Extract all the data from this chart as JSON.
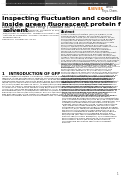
{
  "bg_color": "#ffffff",
  "text_color": "#000000",
  "header_bg": "#2a2a2a",
  "header_text1": "Computational and Structural Biotechnology Journal",
  "header_text2": "journal homepage: www.elsevier.com/locate/csbj",
  "header_text3": "Available at: ScienceDirect",
  "logo_elsevier": "ELSEVIER",
  "logo_color": "#e07820",
  "logo_journal": "WIREs\nPhys. Chem.",
  "open_access": "OPEN ACCESS ARTICLE",
  "doi_line": "doi: 10.1002/wcms.1234",
  "title": "Inspecting fluctuation and coordination around chromophore\ninside green fluorescent protein from water to nonpolar\nsolvent",
  "title_fontsize": 4.5,
  "authors": "Lidong Shi¹* | Bibo Feng¹ | Xiaowei Shi²* | Xu Fu³*",
  "authors_fontsize": 2.5,
  "aff1": "¹School of Chemical Engineering, University of Science",
  "aff2": "  and Technology, Zhengzhou, China",
  "aff3": "²Department of Chemistry, Tsinghua University, Beijing",
  "aff4": "³Institute of Chemistry, Chinese Academy of Sciences",
  "aff_fontsize": 1.6,
  "correspondence": "Correspondence:",
  "corr_names": "Lidong Shi, Xiaowei Shi, Xu Fu",
  "corr_fontsize": 1.6,
  "abstract_title": "Abstract",
  "abstract_text": "Green fluorescent protein (GFP) is a widely used biomarker with thermal environment-sensitive chromophore inside. Many studies validate, so far, some specific solvent behaviors including dynamic fluctuations for proteins and identify anomalous fluctuations and coordination behavior in solvents around GFP. Few studies compare different environmental effects ranging from aqueous to nonpolar organic solvents around GFP, especially the structural transition modes and behaviors of chromophore with solvents. Here we combined molecular dynamics simulation with infrared spectroscopy to compare the solvation environment and chromophore behavior in different solvents, especially water and nonpolar solvents toluene and hexane, through the analysis of the radial distribution function, coordination number, and dipole moments of GFP chromophore in the different solvents. The results show that the chromophore in the GFP in hexane has more disordered and more complex structure and larger coordination number than that in GFP with other solvents. It is also shown that the chromophore is more disordered in hexane compared to the other two solvents due to the influence of the solvent. The methodology applied in GFP study with organic solvents opens up room for the GFP studies with more complex organic solvents for bio-related applications. The comparison between solvents is achieved and all solvent conditions lead to convergence with the protocol. Both the computer simulation and spectroscopic experiments presented in this work validate the importance of the specific protein-solvent interaction.",
  "abstract_fontsize": 1.55,
  "keywords_label": "Key Words",
  "keywords_text": "green fluorescent protein, molecular dynamics simulation, coordination number, infrared spectroscopy",
  "keywords_fontsize": 1.55,
  "section_title": "1   INTRODUCTION OF GFP",
  "section_fontsize": 2.8,
  "body_col1": "Green fluorescent protein is a powerful, prevalent in vivo protein marker commonly used in live organisms research. It can spontaneously form its chromophore inside the beta-barrel structure, which protects the internal chromophore from solvent access. GFP has attracted much attention since the first report of its cloning from jellyfish. GFP emits bright green fluorescence when exposed to light in the blue or ultraviolet range. Due to the excellent optical properties and high stability, extensive studies on GFP have been carried out over the past decades of years. Its applications range from the use of fluorescent tags that label specific proteins, to tools for measuring protein-protein interactions, and sensors for detecting ions or various signals in living cells. GFP and its variants have been widely used to investigate protein dynamics and regulation in living cells, and have become an essential tool in cell biology. One of the unique features of GFP is that it can self-assemble into its characteristic tertiary structure composed of eleven-stranded beta-barrel with an alpha-helix in the center of the barrel, which is the location of the chromophore (Figure 1). The fluorescence was first observed in the crystal of Aequorea victoria. After a series of studies, GFP was found to be a fluorescent protein emitting a bright green light. It seems that GFP emits light at a particular colour since",
  "body_col2": "the electrons present in the protein emit light at a specific wavelength related to the structure of the chromophore. Chromatin study such as in the structure of the chromophore and such related applications of such chromophore is the current research in this field, where the chromophore becomes activated via photon absorption. The structure inside the GFP beta-barrel is reported to change the excitation spectra following the changes of environmental conditions and structural changes of the surrounding amino acid residues. Many single-molecule studies have looked at the conformational and spectroscopic properties of GFP, including studies of the relationship between chromophore photophysics and protein conformation. GFP is photostable and can thus be used in long-term tracking measurements with modest illumination. The fluorescence from different GFP variants is due to different chromophores formed in each variant type. The chromophore was formed in the center of the beta-barrel surrounded by a tight hydrogen bonding network of polar residues and water molecules which are crucial to the spectroscopic properties of GFP. Multiple conformational states of the chromophore and nearby residues are accessible and it is well established that these conformational states have distinct spectroscopic properties. The chromophore environment is highly sensitive to its surrounding environment, and it has been shown that the chromophore absorption spectrum in different solvents.",
  "body_fontsize": 1.55,
  "page_num": "1",
  "page_num_fontsize": 2.0
}
